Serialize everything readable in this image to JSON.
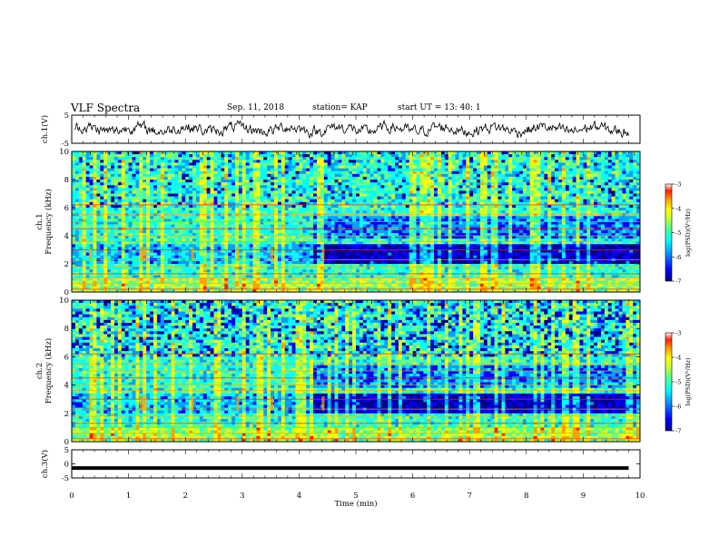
{
  "header": {
    "title": "VLF Spectra",
    "date": "Sep. 11, 2018",
    "station": "station= KAP",
    "start": "start  UT  =   13: 40: 1"
  },
  "chart_data": [
    {
      "type": "line",
      "panel": "ch1-waveform",
      "ylabel": "ch.1(V)",
      "ylim": [
        -5,
        5
      ],
      "yticks": [
        "5",
        "-5"
      ],
      "xlim": [
        0,
        10
      ]
    },
    {
      "type": "heatmap",
      "panel": "ch1-spectrogram",
      "ylabel_top": "ch.1",
      "ylabel": "Frequency  (kHz)",
      "ylim": [
        0,
        10
      ],
      "yticks": [
        "0",
        "2",
        "4",
        "6",
        "8",
        "10"
      ],
      "xlim": [
        0,
        10
      ],
      "colorbar": {
        "label": "log(PSD)(V²/Hz)",
        "range": [
          -7,
          -3
        ],
        "ticks": [
          "-3",
          "-4",
          "-5",
          "-6",
          "-7"
        ]
      }
    },
    {
      "type": "heatmap",
      "panel": "ch2-spectrogram",
      "ylabel_top": "ch.2",
      "ylabel": "Frequency  (kHz)",
      "ylim": [
        0,
        10
      ],
      "yticks": [
        "0",
        "2",
        "4",
        "6",
        "8",
        "10"
      ],
      "xlim": [
        0,
        10
      ],
      "colorbar": {
        "label": "log(PSD)(V²/Hz)",
        "range": [
          -7,
          -3
        ],
        "ticks": [
          "-3",
          "-4",
          "-5",
          "-6",
          "-7"
        ]
      }
    },
    {
      "type": "line",
      "panel": "ch3-waveform",
      "ylabel": "ch.3(V)",
      "ylim": [
        -5,
        5
      ],
      "yticks": [
        "5",
        "0",
        "-5"
      ],
      "xlim": [
        0,
        10
      ],
      "xlabel": "Time  (min)",
      "xticks": [
        "0",
        "1",
        "2",
        "3",
        "4",
        "5",
        "6",
        "7",
        "8",
        "9",
        "10"
      ],
      "value_constant": -1.5
    }
  ],
  "colors": {
    "jet": [
      "#00008f",
      "#0000ff",
      "#00a0ff",
      "#00ffff",
      "#60ff90",
      "#c8ff30",
      "#ffff00",
      "#ffa000",
      "#ff2000",
      "#ffffff"
    ]
  }
}
